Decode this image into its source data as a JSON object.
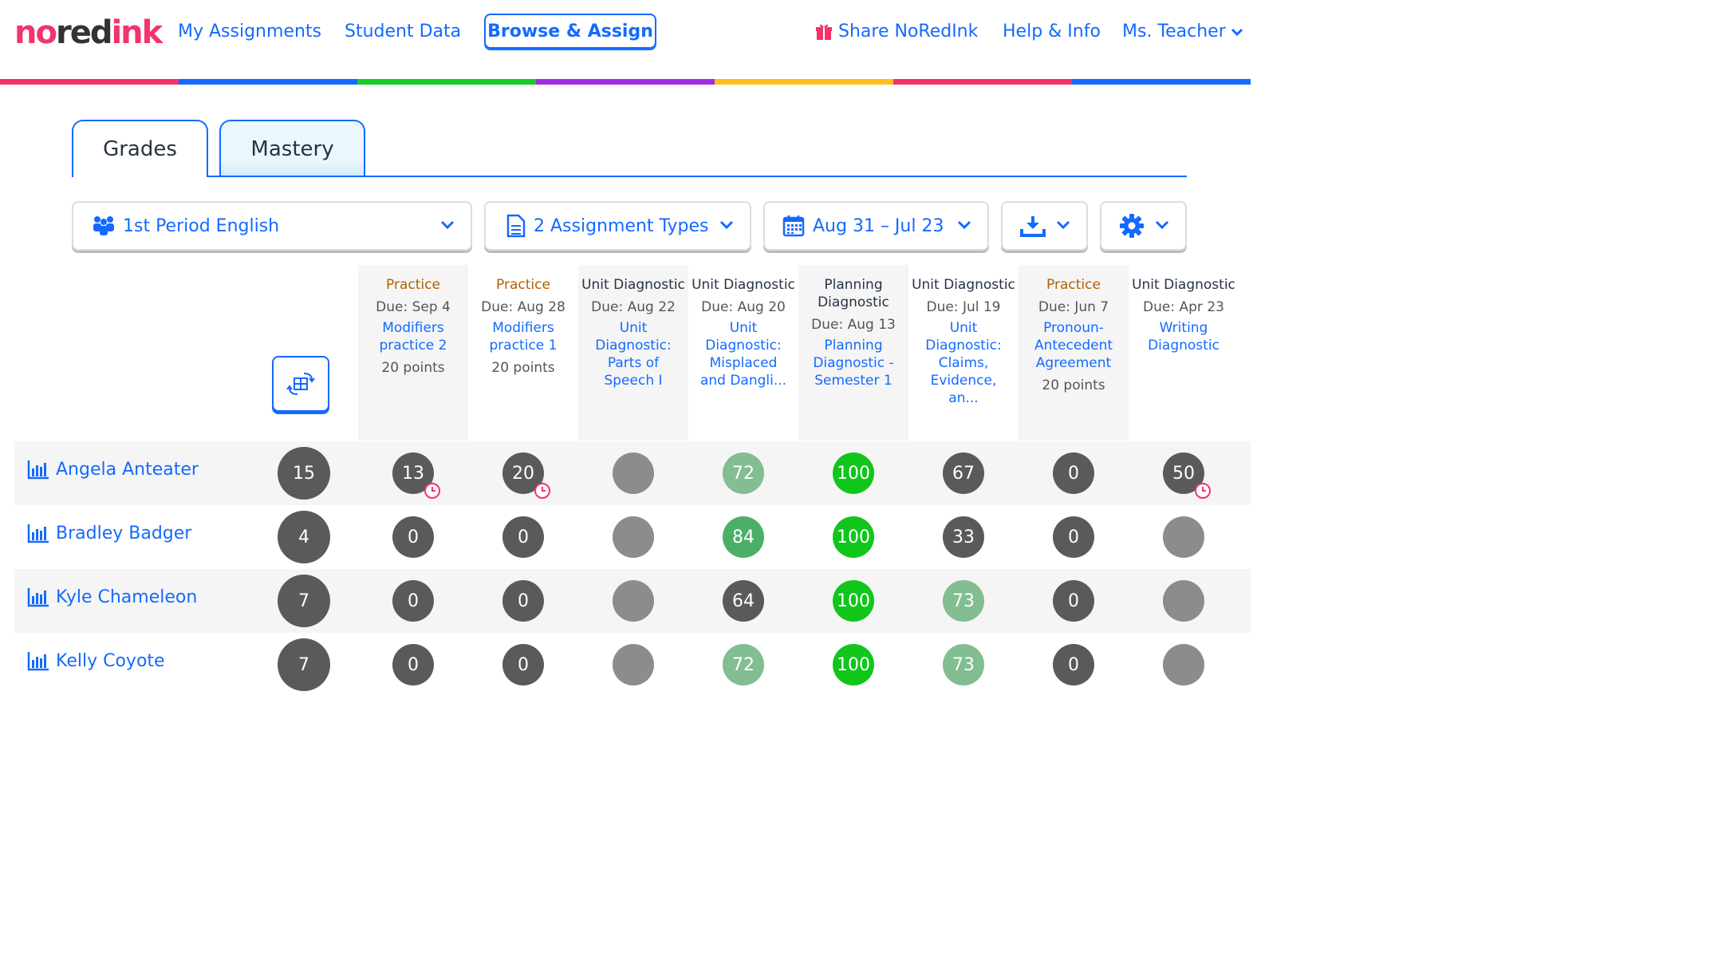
{
  "logo": {
    "no": "no",
    "red": "red",
    "ink": "ink"
  },
  "nav": {
    "my_assignments": "My Assignments",
    "student_data": "Student Data",
    "browse_assign": "Browse & Assign",
    "share": "Share NoRedInk",
    "help": "Help & Info",
    "user": "Ms. Teacher"
  },
  "rainbow_colors": [
    "#f3336c",
    "#146aff",
    "#16cc2a",
    "#a02ee0",
    "#ffbe1b",
    "#f3336c",
    "#146aff"
  ],
  "tabs": {
    "grades": "Grades",
    "mastery": "Mastery"
  },
  "filters": {
    "class": "1st Period English",
    "types": "2 Assignment Types",
    "dates": "Aug 31 – Jul 23"
  },
  "columns": [
    {
      "type": "Practice",
      "kind": "practice",
      "due": "Due: Sep 4",
      "title": "Modifiers practice 2",
      "points": "20 points"
    },
    {
      "type": "Practice",
      "kind": "practice",
      "due": "Due: Aug 28",
      "title": "Modifiers practice 1",
      "points": "20 points"
    },
    {
      "type": "Unit Diagnostic",
      "kind": "diag",
      "due": "Due: Aug 22",
      "title": "Unit Diagnostic: Parts of Speech I",
      "points": ""
    },
    {
      "type": "Unit Diagnostic",
      "kind": "diag",
      "due": "Due: Aug 20",
      "title": "Unit Diagnostic: Misplaced and Dangli...",
      "points": ""
    },
    {
      "type": "Planning Diagnostic",
      "kind": "diag",
      "due": "Due: Aug 13",
      "title": "Planning Diagnostic - Semester 1",
      "points": ""
    },
    {
      "type": "Unit Diagnostic",
      "kind": "diag",
      "due": "Due: Jul 19",
      "title": "Unit Diagnostic: Claims, Evidence, an...",
      "points": ""
    },
    {
      "type": "Practice",
      "kind": "practice",
      "due": "Due: Jun 7",
      "title": "Pronoun-Antecedent Agreement",
      "points": "20 points"
    },
    {
      "type": "Unit Diagnostic",
      "kind": "diag",
      "due": "Due: Apr 23",
      "title": "Writing Diagnostic",
      "points": ""
    }
  ],
  "students": [
    {
      "name": "Angela Anteater",
      "total": "15",
      "scores": [
        "13",
        "20",
        "",
        "72",
        "100",
        "67",
        "0",
        "50"
      ],
      "late": [
        true,
        true,
        false,
        false,
        false,
        false,
        false,
        true
      ]
    },
    {
      "name": "Bradley Badger",
      "total": "4",
      "scores": [
        "0",
        "0",
        "",
        "84",
        "100",
        "33",
        "0",
        ""
      ],
      "late": [
        false,
        false,
        false,
        false,
        false,
        false,
        false,
        false
      ]
    },
    {
      "name": "Kyle Chameleon",
      "total": "7",
      "scores": [
        "0",
        "0",
        "",
        "64",
        "100",
        "73",
        "0",
        ""
      ],
      "late": [
        false,
        false,
        false,
        false,
        false,
        false,
        false,
        false
      ]
    },
    {
      "name": "Kelly Coyote",
      "total": "7",
      "scores": [
        "0",
        "0",
        "",
        "72",
        "100",
        "73",
        "0",
        ""
      ],
      "late": [
        false,
        false,
        false,
        false,
        false,
        false,
        false,
        false
      ]
    }
  ],
  "score_colors": {
    "dark": "#5a5a5a",
    "empty": "#8c8c8c",
    "light_green": "#83bd92",
    "mid_green": "#4caf67",
    "bright_green": "#10c61b"
  }
}
